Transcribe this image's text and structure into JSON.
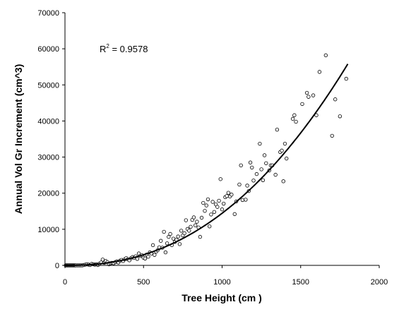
{
  "chart_data": {
    "type": "scatter",
    "title": "",
    "xlabel": "Tree Height (cm )",
    "ylabel": "Annual Vol Gr Increment (cm^3)",
    "xlim": [
      0,
      2000
    ],
    "ylim": [
      0,
      70000
    ],
    "x_ticks": [
      "0",
      "500",
      "1000",
      "1500",
      "2000"
    ],
    "y_ticks": [
      "0",
      "10000",
      "20000",
      "30000",
      "40000",
      "50000",
      "60000",
      "70000"
    ],
    "grid": false,
    "legend": "none",
    "annotation": {
      "prefix": "R",
      "superscript": "2",
      "text": " = 0.9578"
    },
    "trendline": {
      "type": "power",
      "x_range": [
        0,
        1800
      ],
      "y_at_max": 55800,
      "exponent": 2.3
    },
    "points": [
      [
        5,
        0
      ],
      [
        10,
        0
      ],
      [
        15,
        0
      ],
      [
        20,
        0
      ],
      [
        25,
        0
      ],
      [
        30,
        0
      ],
      [
        35,
        0
      ],
      [
        40,
        0
      ],
      [
        45,
        0
      ],
      [
        50,
        0
      ],
      [
        55,
        0
      ],
      [
        60,
        0
      ],
      [
        65,
        0
      ],
      [
        70,
        0
      ],
      [
        80,
        0
      ],
      [
        90,
        0
      ],
      [
        100,
        0
      ],
      [
        110,
        0
      ],
      [
        120,
        100
      ],
      [
        130,
        200
      ],
      [
        140,
        300
      ],
      [
        150,
        200
      ],
      [
        160,
        100
      ],
      [
        170,
        400
      ],
      [
        180,
        300
      ],
      [
        190,
        200
      ],
      [
        200,
        300
      ],
      [
        210,
        100
      ],
      [
        220,
        500
      ],
      [
        230,
        800
      ],
      [
        240,
        1600
      ],
      [
        250,
        700
      ],
      [
        260,
        1200
      ],
      [
        270,
        900
      ],
      [
        280,
        300
      ],
      [
        290,
        600
      ],
      [
        300,
        700
      ],
      [
        310,
        600
      ],
      [
        320,
        900
      ],
      [
        330,
        1100
      ],
      [
        340,
        800
      ],
      [
        350,
        1300
      ],
      [
        360,
        1500
      ],
      [
        370,
        1200
      ],
      [
        380,
        1700
      ],
      [
        390,
        2000
      ],
      [
        400,
        1700
      ],
      [
        410,
        1400
      ],
      [
        420,
        2000
      ],
      [
        430,
        2300
      ],
      [
        440,
        2100
      ],
      [
        450,
        2500
      ],
      [
        460,
        1800
      ],
      [
        470,
        3300
      ],
      [
        480,
        2600
      ],
      [
        490,
        2800
      ],
      [
        500,
        2100
      ],
      [
        510,
        1900
      ],
      [
        520,
        3000
      ],
      [
        530,
        2400
      ],
      [
        540,
        3600
      ],
      [
        550,
        3300
      ],
      [
        560,
        5600
      ],
      [
        570,
        2900
      ],
      [
        580,
        3800
      ],
      [
        590,
        4200
      ],
      [
        600,
        5000
      ],
      [
        610,
        6800
      ],
      [
        620,
        4900
      ],
      [
        630,
        9300
      ],
      [
        640,
        3600
      ],
      [
        650,
        6100
      ],
      [
        660,
        7900
      ],
      [
        670,
        8700
      ],
      [
        680,
        5600
      ],
      [
        690,
        7400
      ],
      [
        700,
        6500
      ],
      [
        710,
        7100
      ],
      [
        720,
        8000
      ],
      [
        730,
        5900
      ],
      [
        740,
        9600
      ],
      [
        750,
        8300
      ],
      [
        760,
        8900
      ],
      [
        770,
        12500
      ],
      [
        780,
        10100
      ],
      [
        790,
        9600
      ],
      [
        800,
        10700
      ],
      [
        810,
        12600
      ],
      [
        820,
        13300
      ],
      [
        830,
        11100
      ],
      [
        840,
        12100
      ],
      [
        850,
        10500
      ],
      [
        860,
        7900
      ],
      [
        870,
        13200
      ],
      [
        880,
        17300
      ],
      [
        890,
        15100
      ],
      [
        900,
        16600
      ],
      [
        910,
        18300
      ],
      [
        920,
        10800
      ],
      [
        930,
        14100
      ],
      [
        940,
        17600
      ],
      [
        950,
        14800
      ],
      [
        960,
        16900
      ],
      [
        970,
        16200
      ],
      [
        980,
        17900
      ],
      [
        990,
        23900
      ],
      [
        1000,
        15500
      ],
      [
        1010,
        17100
      ],
      [
        1020,
        18900
      ],
      [
        1030,
        19200
      ],
      [
        1040,
        20100
      ],
      [
        1050,
        19100
      ],
      [
        1060,
        19600
      ],
      [
        1080,
        14200
      ],
      [
        1090,
        17700
      ],
      [
        1110,
        22400
      ],
      [
        1120,
        27700
      ],
      [
        1130,
        18100
      ],
      [
        1150,
        18200
      ],
      [
        1160,
        22100
      ],
      [
        1170,
        20600
      ],
      [
        1180,
        28500
      ],
      [
        1190,
        27100
      ],
      [
        1200,
        23500
      ],
      [
        1220,
        25300
      ],
      [
        1240,
        33700
      ],
      [
        1250,
        26600
      ],
      [
        1260,
        23600
      ],
      [
        1270,
        30500
      ],
      [
        1280,
        28300
      ],
      [
        1300,
        26300
      ],
      [
        1310,
        27700
      ],
      [
        1320,
        27700
      ],
      [
        1340,
        25100
      ],
      [
        1350,
        37600
      ],
      [
        1370,
        31400
      ],
      [
        1380,
        31800
      ],
      [
        1390,
        23300
      ],
      [
        1400,
        33700
      ],
      [
        1410,
        29600
      ],
      [
        1450,
        40600
      ],
      [
        1460,
        41600
      ],
      [
        1470,
        39800
      ],
      [
        1510,
        44700
      ],
      [
        1540,
        47800
      ],
      [
        1550,
        46700
      ],
      [
        1580,
        47100
      ],
      [
        1600,
        41600
      ],
      [
        1620,
        53600
      ],
      [
        1660,
        58200
      ],
      [
        1700,
        35900
      ],
      [
        1720,
        46000
      ],
      [
        1750,
        41300
      ],
      [
        1790,
        51700
      ]
    ]
  }
}
